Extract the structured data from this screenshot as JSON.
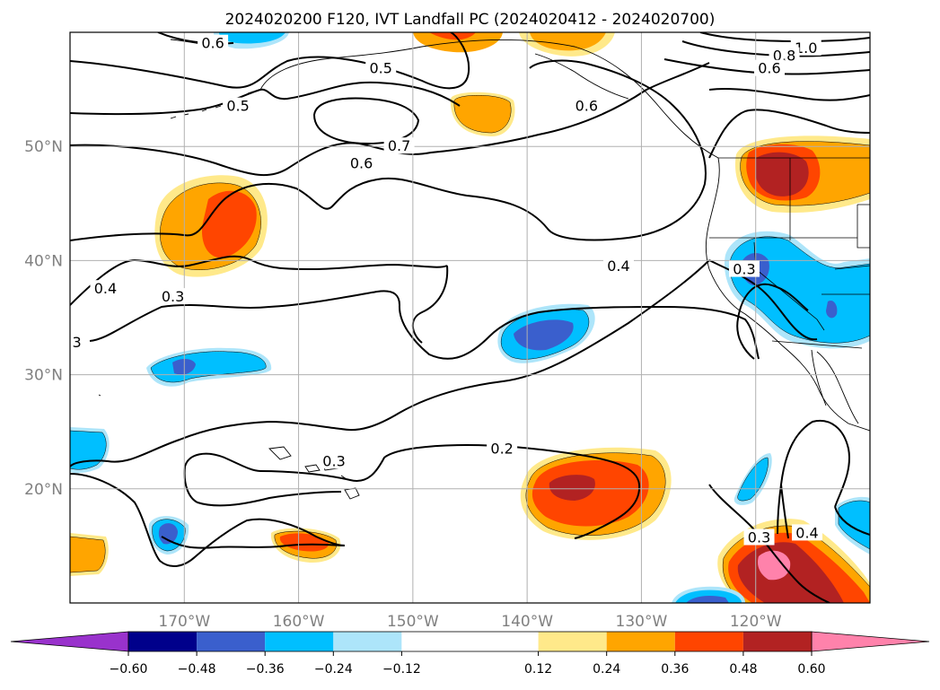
{
  "chart_data": {
    "type": "contour-map",
    "title": "2024020200 F120, IVT Landfall PC (2024020412 - 2024020700)",
    "xlim": [
      -180,
      -110
    ],
    "ylim": [
      10,
      60
    ],
    "x_ticks": [
      {
        "value": -170,
        "label": "170°W"
      },
      {
        "value": -160,
        "label": "160°W"
      },
      {
        "value": -150,
        "label": "150°W"
      },
      {
        "value": -140,
        "label": "140°W"
      },
      {
        "value": -130,
        "label": "130°W"
      },
      {
        "value": -120,
        "label": "120°W"
      }
    ],
    "y_ticks": [
      {
        "value": 20,
        "label": "20°N"
      },
      {
        "value": 30,
        "label": "30°N"
      },
      {
        "value": 40,
        "label": "40°N"
      },
      {
        "value": 50,
        "label": "50°N"
      }
    ],
    "grid": true,
    "colorbar": {
      "boundaries": [
        -0.6,
        -0.48,
        -0.36,
        -0.24,
        -0.12,
        0.12,
        0.24,
        0.36,
        0.48,
        0.6
      ],
      "tick_labels": [
        "−0.60",
        "−0.48",
        "−0.36",
        "−0.24",
        "−0.12",
        "0.12",
        "0.24",
        "0.36",
        "0.48",
        "0.60"
      ],
      "colors": [
        "#9932CC",
        "#00008B",
        "#3A5FCD",
        "#00BFFF",
        "#ADE5FA",
        "#FFFFFF",
        "#FFE98A",
        "#FFA500",
        "#FF4500",
        "#B22222",
        "#FF82AB"
      ],
      "extend": "both",
      "orientation": "horizontal"
    },
    "contour_labels": [
      {
        "text": "0.6",
        "lon": -167.5,
        "lat": 59.0
      },
      {
        "text": "1.0",
        "lon": -115.6,
        "lat": 58.6
      },
      {
        "text": "0.8",
        "lon": -117.5,
        "lat": 57.9
      },
      {
        "text": "0.6",
        "lon": -118.8,
        "lat": 56.8
      },
      {
        "text": "0.5",
        "lon": -152.8,
        "lat": 56.8
      },
      {
        "text": "0.5",
        "lon": -165.3,
        "lat": 53.5
      },
      {
        "text": "0.6",
        "lon": -134.8,
        "lat": 53.5
      },
      {
        "text": "0.7",
        "lon": -151.2,
        "lat": 50.0
      },
      {
        "text": "0.6",
        "lon": -154.5,
        "lat": 48.5
      },
      {
        "text": "0.4",
        "lon": -132.0,
        "lat": 39.5
      },
      {
        "text": "0.3",
        "lon": -121.0,
        "lat": 39.2
      },
      {
        "text": "0.4",
        "lon": -176.9,
        "lat": 37.5
      },
      {
        "text": "0.3",
        "lon": -171.0,
        "lat": 36.8
      },
      {
        "text": "3",
        "lon": -179.4,
        "lat": 32.8
      },
      {
        "text": "0.2",
        "lon": -142.2,
        "lat": 23.5
      },
      {
        "text": "0.3",
        "lon": -156.9,
        "lat": 22.4
      },
      {
        "text": "0.3",
        "lon": -119.7,
        "lat": 15.7
      },
      {
        "text": "0.4",
        "lon": -115.5,
        "lat": 16.1
      }
    ],
    "anomaly_regions": [
      {
        "sign": "positive",
        "peak": 0.42,
        "lon": -165.5,
        "lat": 43.0
      },
      {
        "sign": "positive",
        "peak": 0.3,
        "lon": -145.5,
        "lat": 53.5
      },
      {
        "sign": "positive",
        "peak": 0.3,
        "lon": -148.0,
        "lat": 59.5
      },
      {
        "sign": "positive",
        "peak": 0.28,
        "lon": -139.0,
        "lat": 59.5
      },
      {
        "sign": "positive",
        "peak": 0.54,
        "lon": -119.0,
        "lat": 48.5
      },
      {
        "sign": "positive",
        "peak": 0.45,
        "lon": -136.5,
        "lat": 20.0
      },
      {
        "sign": "positive",
        "peak": 0.38,
        "lon": -158.0,
        "lat": 15.2
      },
      {
        "sign": "positive",
        "peak": 0.28,
        "lon": -178.5,
        "lat": 14.5
      },
      {
        "sign": "positive",
        "peak": 0.62,
        "lon": -120.0,
        "lat": 13.5
      },
      {
        "sign": "negative",
        "peak": -0.4,
        "lon": -140.0,
        "lat": 33.5
      },
      {
        "sign": "negative",
        "peak": -0.38,
        "lon": -169.5,
        "lat": 30.5
      },
      {
        "sign": "negative",
        "peak": -0.38,
        "lon": -171.0,
        "lat": 16.5
      },
      {
        "sign": "negative",
        "peak": -0.3,
        "lon": -178.5,
        "lat": 23.5
      },
      {
        "sign": "negative",
        "peak": -0.38,
        "lon": -120.5,
        "lat": 38.5
      },
      {
        "sign": "negative",
        "peak": -0.38,
        "lon": -112.5,
        "lat": 35.5
      },
      {
        "sign": "negative",
        "peak": -0.3,
        "lon": -122.0,
        "lat": 21.0
      },
      {
        "sign": "negative",
        "peak": -0.3,
        "lon": -111.8,
        "lat": 17.5
      },
      {
        "sign": "negative",
        "peak": -0.38,
        "lon": -126.0,
        "lat": 10.5
      },
      {
        "sign": "negative",
        "peak": -0.28,
        "lon": -166.0,
        "lat": 59.5
      },
      {
        "sign": "negative",
        "peak": -0.28,
        "lon": -162.0,
        "lat": 59.5
      }
    ]
  }
}
